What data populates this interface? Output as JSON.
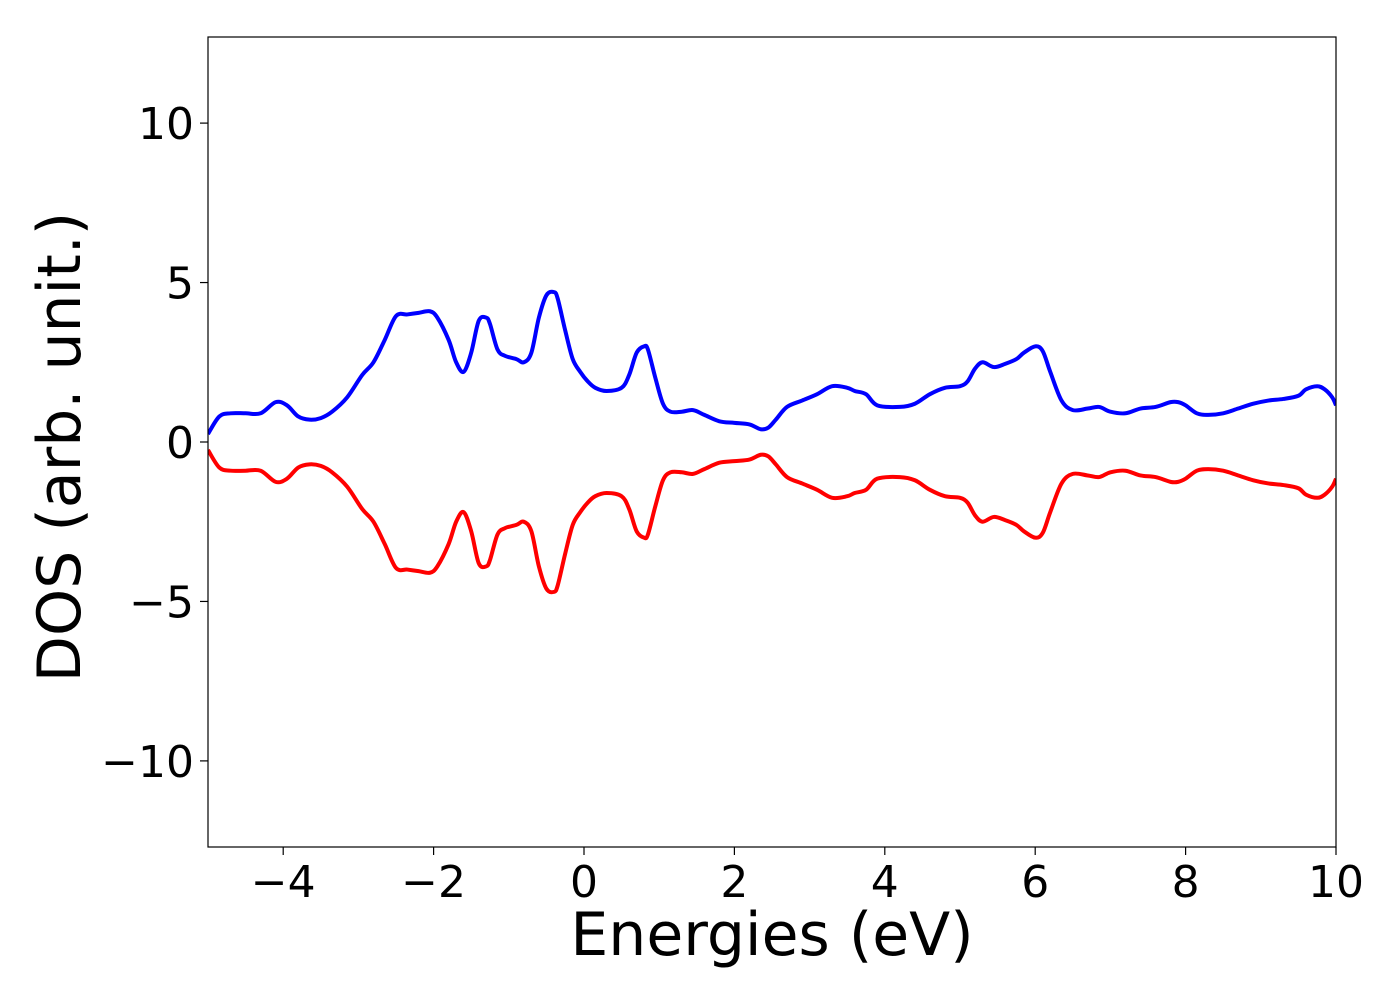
{
  "chart_data": {
    "type": "line",
    "title": "",
    "xlabel": "Energies (eV)",
    "ylabel": "DOS (arb. unit.)",
    "xlim": [
      -5,
      10
    ],
    "ylim": [
      -12.7,
      12.7
    ],
    "grid": false,
    "xticks": [
      -4,
      -2,
      0,
      2,
      4,
      6,
      8,
      10
    ],
    "xtick_labels": [
      "−4",
      "−2",
      "0",
      "2",
      "4",
      "6",
      "8",
      "10"
    ],
    "yticks": [
      -10,
      -5,
      0,
      5,
      10
    ],
    "ytick_labels": [
      "−10",
      "−5",
      "0",
      "5",
      "10"
    ],
    "series": [
      {
        "color": "#0000ff",
        "x": [
          -5.0,
          -4.85,
          -4.7,
          -4.5,
          -4.3,
          -4.1,
          -3.95,
          -3.8,
          -3.65,
          -3.5,
          -3.35,
          -3.15,
          -2.95,
          -2.8,
          -2.65,
          -2.5,
          -2.35,
          -2.2,
          -2.05,
          -1.95,
          -1.8,
          -1.7,
          -1.6,
          -1.5,
          -1.4,
          -1.3,
          -1.25,
          -1.15,
          -1.05,
          -0.9,
          -0.8,
          -0.7,
          -0.6,
          -0.5,
          -0.4,
          -0.35,
          -0.25,
          -0.15,
          -0.05,
          0.05,
          0.15,
          0.3,
          0.5,
          0.6,
          0.7,
          0.8,
          0.85,
          0.95,
          1.05,
          1.15,
          1.3,
          1.45,
          1.6,
          1.8,
          2.0,
          2.2,
          2.35,
          2.45,
          2.55,
          2.7,
          2.9,
          3.1,
          3.3,
          3.5,
          3.6,
          3.75,
          3.9,
          4.2,
          4.4,
          4.6,
          4.8,
          5.0,
          5.1,
          5.2,
          5.3,
          5.45,
          5.6,
          5.75,
          5.85,
          6.0,
          6.1,
          6.2,
          6.35,
          6.5,
          6.7,
          6.85,
          7.0,
          7.2,
          7.4,
          7.6,
          7.8,
          7.9,
          8.0,
          8.15,
          8.3,
          8.5,
          8.7,
          8.9,
          9.1,
          9.3,
          9.5,
          9.6,
          9.75,
          9.85,
          9.95,
          10.0
        ],
        "values": [
          0.25,
          0.8,
          0.9,
          0.9,
          0.9,
          1.25,
          1.15,
          0.8,
          0.7,
          0.75,
          0.95,
          1.4,
          2.1,
          2.5,
          3.2,
          3.95,
          4.0,
          4.05,
          4.1,
          3.9,
          3.2,
          2.5,
          2.2,
          2.8,
          3.8,
          3.9,
          3.7,
          2.9,
          2.7,
          2.6,
          2.5,
          2.8,
          3.9,
          4.6,
          4.7,
          4.5,
          3.5,
          2.6,
          2.2,
          1.9,
          1.7,
          1.6,
          1.7,
          2.1,
          2.8,
          3.0,
          2.9,
          2.0,
          1.2,
          0.95,
          0.95,
          1.0,
          0.85,
          0.65,
          0.6,
          0.55,
          0.4,
          0.45,
          0.7,
          1.1,
          1.3,
          1.5,
          1.75,
          1.7,
          1.6,
          1.5,
          1.15,
          1.1,
          1.2,
          1.5,
          1.7,
          1.75,
          1.9,
          2.3,
          2.5,
          2.35,
          2.45,
          2.6,
          2.8,
          3.0,
          2.85,
          2.2,
          1.3,
          1.0,
          1.05,
          1.1,
          0.95,
          0.9,
          1.05,
          1.1,
          1.25,
          1.25,
          1.15,
          0.9,
          0.85,
          0.9,
          1.05,
          1.2,
          1.3,
          1.35,
          1.45,
          1.65,
          1.75,
          1.65,
          1.4,
          1.15
        ]
      },
      {
        "color": "#ff0000",
        "x": [
          -5.0,
          -4.85,
          -4.7,
          -4.5,
          -4.3,
          -4.1,
          -3.95,
          -3.8,
          -3.65,
          -3.5,
          -3.35,
          -3.15,
          -2.95,
          -2.8,
          -2.65,
          -2.5,
          -2.35,
          -2.2,
          -2.05,
          -1.95,
          -1.8,
          -1.7,
          -1.6,
          -1.5,
          -1.4,
          -1.3,
          -1.25,
          -1.15,
          -1.05,
          -0.9,
          -0.8,
          -0.7,
          -0.6,
          -0.5,
          -0.4,
          -0.35,
          -0.25,
          -0.15,
          -0.05,
          0.05,
          0.15,
          0.3,
          0.5,
          0.6,
          0.7,
          0.8,
          0.85,
          0.95,
          1.05,
          1.15,
          1.3,
          1.45,
          1.6,
          1.8,
          2.0,
          2.2,
          2.35,
          2.45,
          2.55,
          2.7,
          2.9,
          3.1,
          3.3,
          3.5,
          3.6,
          3.75,
          3.9,
          4.2,
          4.4,
          4.6,
          4.8,
          5.0,
          5.1,
          5.2,
          5.3,
          5.45,
          5.6,
          5.75,
          5.85,
          6.0,
          6.1,
          6.2,
          6.35,
          6.5,
          6.7,
          6.85,
          7.0,
          7.2,
          7.4,
          7.6,
          7.8,
          7.9,
          8.0,
          8.15,
          8.3,
          8.5,
          8.7,
          8.9,
          9.1,
          9.3,
          9.5,
          9.6,
          9.75,
          9.85,
          9.95,
          10.0
        ],
        "values": [
          -0.25,
          -0.8,
          -0.9,
          -0.9,
          -0.9,
          -1.25,
          -1.15,
          -0.8,
          -0.7,
          -0.75,
          -0.95,
          -1.4,
          -2.1,
          -2.5,
          -3.2,
          -3.95,
          -4.0,
          -4.05,
          -4.1,
          -3.9,
          -3.2,
          -2.5,
          -2.2,
          -2.8,
          -3.8,
          -3.9,
          -3.7,
          -2.9,
          -2.7,
          -2.6,
          -2.5,
          -2.8,
          -3.9,
          -4.6,
          -4.7,
          -4.5,
          -3.5,
          -2.6,
          -2.2,
          -1.9,
          -1.7,
          -1.6,
          -1.7,
          -2.1,
          -2.8,
          -3.0,
          -2.9,
          -2.0,
          -1.2,
          -0.95,
          -0.95,
          -1.0,
          -0.85,
          -0.65,
          -0.6,
          -0.55,
          -0.4,
          -0.45,
          -0.7,
          -1.1,
          -1.3,
          -1.5,
          -1.75,
          -1.7,
          -1.6,
          -1.5,
          -1.15,
          -1.1,
          -1.2,
          -1.5,
          -1.7,
          -1.75,
          -1.9,
          -2.3,
          -2.5,
          -2.35,
          -2.45,
          -2.6,
          -2.8,
          -3.0,
          -2.85,
          -2.2,
          -1.3,
          -1.0,
          -1.05,
          -1.1,
          -0.95,
          -0.9,
          -1.05,
          -1.1,
          -1.25,
          -1.25,
          -1.15,
          -0.9,
          -0.85,
          -0.9,
          -1.05,
          -1.2,
          -1.3,
          -1.35,
          -1.45,
          -1.65,
          -1.75,
          -1.65,
          -1.4,
          -1.15
        ]
      }
    ]
  }
}
